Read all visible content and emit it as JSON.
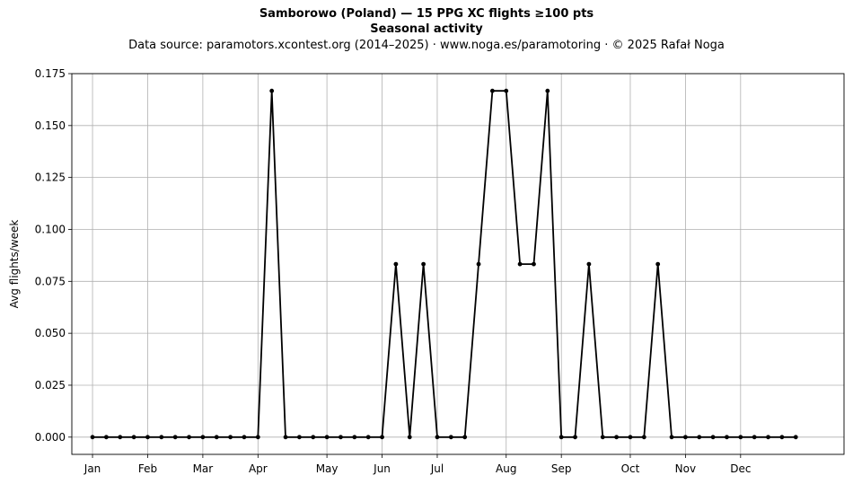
{
  "header": {
    "title_line1": "Samborowo (Poland)  —  15 PPG XC flights ≥100 pts",
    "title_line2": "Seasonal activity",
    "subtitle": "Data source: paramotors.xcontest.org (2014–2025)  ·  www.noga.es/paramotoring  ·  © 2025 Rafał Noga"
  },
  "chart_data": {
    "type": "line",
    "title": "Samborowo (Poland)  —  15 PPG XC flights ≥100 pts",
    "subtitle": "Seasonal activity",
    "xlabel": "",
    "ylabel": "Avg flights/week",
    "x_unit": "week of year",
    "xlim": [
      -1.5,
      54.5
    ],
    "ylim": [
      -0.0083,
      0.175
    ],
    "yticks": [
      0.0,
      0.025,
      0.05,
      0.075,
      0.1,
      0.125,
      0.15,
      0.175
    ],
    "ytick_labels": [
      "0.000",
      "0.025",
      "0.050",
      "0.075",
      "0.100",
      "0.125",
      "0.150",
      "0.175"
    ],
    "xticks": [
      {
        "label": "Jan",
        "week": 0
      },
      {
        "label": "Feb",
        "week": 4
      },
      {
        "label": "Mar",
        "week": 8
      },
      {
        "label": "Apr",
        "week": 12
      },
      {
        "label": "May",
        "week": 17
      },
      {
        "label": "Jun",
        "week": 21
      },
      {
        "label": "Jul",
        "week": 25
      },
      {
        "label": "Aug",
        "week": 30
      },
      {
        "label": "Sep",
        "week": 34
      },
      {
        "label": "Oct",
        "week": 39
      },
      {
        "label": "Nov",
        "week": 43
      },
      {
        "label": "Dec",
        "week": 47
      }
    ],
    "grid": true,
    "color": "#000000",
    "series": [
      {
        "x": [
          0,
          1,
          2,
          3,
          4,
          5,
          6,
          7,
          8,
          9,
          10,
          11,
          12,
          13,
          14,
          15,
          16,
          17,
          18,
          19,
          20,
          21,
          22,
          23,
          24,
          25,
          26,
          27,
          28,
          29,
          30,
          31,
          32,
          33,
          34,
          35,
          36,
          37,
          38,
          39,
          40,
          41,
          42,
          43,
          44,
          45,
          46,
          47,
          48,
          49,
          50,
          51
        ],
        "values": [
          0,
          0,
          0,
          0,
          0,
          0,
          0,
          0,
          0,
          0,
          0,
          0,
          0,
          0.1667,
          0,
          0,
          0,
          0,
          0,
          0,
          0,
          0,
          0.0833,
          0,
          0.0833,
          0,
          0,
          0,
          0.0833,
          0.1667,
          0.1667,
          0.0833,
          0.0833,
          0.1667,
          0,
          0,
          0.0833,
          0,
          0,
          0,
          0,
          0.0833,
          0,
          0,
          0,
          0,
          0,
          0,
          0,
          0,
          0,
          0
        ]
      }
    ]
  }
}
